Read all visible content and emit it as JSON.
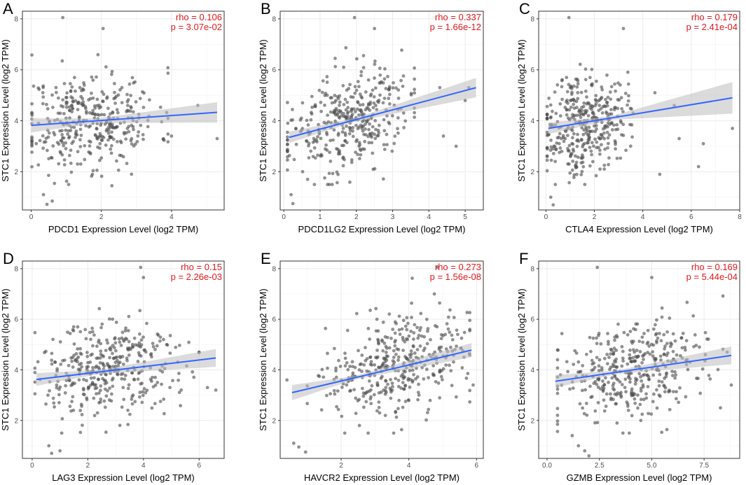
{
  "figure": {
    "background": "#ffffff",
    "grid_color": "#ebebeb",
    "point_color": "#4d4d4d",
    "line_color": "#3366ff",
    "band_color": "#bdbdbd",
    "stat_color": "#e31a1c"
  },
  "chart_data": [
    {
      "letter": "A",
      "type": "scatter",
      "xlabel": "PDCD1 Expression Level (log2 TPM)",
      "ylabel": "STC1 Expression Level (log2 TPM)",
      "rho": "rho = 0.106",
      "p": "p = 3.07e-02",
      "xlim": [
        -0.25,
        5.5
      ],
      "ylim": [
        0.5,
        8.3
      ],
      "xticks": [
        0,
        2,
        4
      ],
      "xtick_labels": [
        "0",
        "2",
        "4"
      ],
      "yticks": [
        2,
        4,
        6,
        8
      ],
      "ytick_labels": [
        "2",
        "4",
        "6",
        "8"
      ],
      "fit": {
        "x0": 0,
        "y0": 3.82,
        "x1": 5.3,
        "y1": 4.33,
        "band0": 0.28,
        "bandmid": 0.09,
        "band1": 0.4
      },
      "cloud": {
        "n": 380,
        "xmean": 1.7,
        "xsd": 0.95,
        "xmin": 0.02,
        "xmax": 3.9,
        "ymean": 4.0,
        "ysd": 0.95,
        "seed": 11
      },
      "extra_points": [
        [
          0.9,
          8.05
        ],
        [
          2.05,
          7.62
        ],
        [
          4.75,
          4.6
        ],
        [
          5.3,
          3.3
        ],
        [
          4.0,
          3.4
        ],
        [
          2.3,
          1.45
        ],
        [
          0.35,
          1.1
        ],
        [
          0.45,
          0.72
        ],
        [
          0.6,
          0.85
        ]
      ]
    },
    {
      "letter": "B",
      "type": "scatter",
      "xlabel": "PDCD1LG2 Expression Level (log2 TPM)",
      "ylabel": "STC1 Expression Level (log2 TPM)",
      "rho": "rho = 0.337",
      "p": "p = 1.66e-12",
      "xlim": [
        -0.1,
        5.5
      ],
      "ylim": [
        0.5,
        8.3
      ],
      "xticks": [
        0,
        1,
        2,
        3,
        4,
        5
      ],
      "xtick_labels": [
        "0",
        "1",
        "2",
        "3",
        "4",
        "5"
      ],
      "yticks": [
        2,
        4,
        6,
        8
      ],
      "ytick_labels": [
        "2",
        "4",
        "6",
        "8"
      ],
      "fit": {
        "x0": 0.15,
        "y0": 3.35,
        "x1": 5.3,
        "y1": 5.3,
        "band0": 0.22,
        "bandmid": 0.07,
        "band1": 0.38
      },
      "cloud": {
        "n": 380,
        "xmean": 1.75,
        "xsd": 0.85,
        "xmin": 0.1,
        "xmax": 3.6,
        "ymean": 4.0,
        "ysd": 0.95,
        "seed": 23
      },
      "extra_points": [
        [
          1.95,
          8.05
        ],
        [
          2.5,
          7.62
        ],
        [
          4.3,
          5.3
        ],
        [
          5.1,
          5.3
        ],
        [
          5.0,
          4.8
        ],
        [
          4.75,
          3.0
        ],
        [
          4.4,
          3.4
        ],
        [
          0.2,
          1.1
        ],
        [
          0.25,
          0.75
        ]
      ]
    },
    {
      "letter": "C",
      "type": "scatter",
      "xlabel": "CTLA4 Expression Level (log2 TPM)",
      "ylabel": "STC1 Expression Level (log2 TPM)",
      "rho": "rho = 0.179",
      "p": "p = 2.41e-04",
      "xlim": [
        -0.3,
        8.0
      ],
      "ylim": [
        0.5,
        8.3
      ],
      "xticks": [
        0,
        2,
        4,
        6,
        8
      ],
      "xtick_labels": [
        "0",
        "2",
        "4",
        "6",
        "8"
      ],
      "yticks": [
        2,
        4,
        6,
        8
      ],
      "ytick_labels": [
        "2",
        "4",
        "6",
        "8"
      ],
      "fit": {
        "x0": 0.1,
        "y0": 3.7,
        "x1": 7.7,
        "y1": 4.9,
        "band0": 0.22,
        "bandmid": 0.08,
        "band1": 0.62
      },
      "cloud": {
        "n": 380,
        "xmean": 1.6,
        "xsd": 0.85,
        "xmin": 0.05,
        "xmax": 3.6,
        "ymean": 4.0,
        "ysd": 0.95,
        "seed": 37
      },
      "extra_points": [
        [
          0.95,
          8.05
        ],
        [
          3.2,
          7.62
        ],
        [
          4.5,
          5.1
        ],
        [
          5.3,
          4.6
        ],
        [
          5.5,
          3.3
        ],
        [
          6.5,
          3.1
        ],
        [
          7.7,
          3.7
        ],
        [
          4.7,
          1.9
        ],
        [
          6.3,
          2.2
        ],
        [
          0.2,
          1.0
        ],
        [
          0.3,
          0.7
        ]
      ]
    },
    {
      "letter": "D",
      "type": "scatter",
      "xlabel": "LAG3 Expression Level (log2 TPM)",
      "ylabel": "STC1 Expression Level (log2 TPM)",
      "rho": "rho = 0.15",
      "p": "p = 2.26e-03",
      "xlim": [
        -0.35,
        6.9
      ],
      "ylim": [
        0.5,
        8.3
      ],
      "xticks": [
        0,
        2,
        4,
        6
      ],
      "xtick_labels": [
        "0",
        "2",
        "4",
        "6"
      ],
      "yticks": [
        2,
        4,
        6,
        8
      ],
      "ytick_labels": [
        "2",
        "4",
        "6",
        "8"
      ],
      "fit": {
        "x0": 0.15,
        "y0": 3.62,
        "x1": 6.6,
        "y1": 4.47,
        "band0": 0.25,
        "bandmid": 0.08,
        "band1": 0.35
      },
      "cloud": {
        "n": 380,
        "xmean": 2.8,
        "xsd": 1.25,
        "xmin": 0.1,
        "xmax": 6.0,
        "ymean": 4.0,
        "ysd": 0.95,
        "seed": 51
      },
      "extra_points": [
        [
          3.9,
          8.05
        ],
        [
          4.0,
          7.65
        ],
        [
          6.0,
          4.7
        ],
        [
          6.3,
          3.3
        ],
        [
          6.6,
          3.2
        ],
        [
          0.6,
          1.0
        ],
        [
          0.7,
          0.7
        ],
        [
          1.0,
          0.8
        ]
      ]
    },
    {
      "letter": "E",
      "type": "scatter",
      "xlabel": "HAVCR2 Expression Level (log2 TPM)",
      "ylabel": "STC1 Expression Level (log2 TPM)",
      "rho": "rho = 0.273",
      "p": "p = 1.56e-08",
      "xlim": [
        0.2,
        6.2
      ],
      "ylim": [
        0.5,
        8.3
      ],
      "xticks": [
        2,
        4,
        6
      ],
      "xtick_labels": [
        "2",
        "4",
        "6"
      ],
      "yticks": [
        2,
        4,
        6,
        8
      ],
      "ytick_labels": [
        "2",
        "4",
        "6",
        "8"
      ],
      "fit": {
        "x0": 0.55,
        "y0": 3.1,
        "x1": 5.85,
        "y1": 4.78,
        "band0": 0.3,
        "bandmid": 0.07,
        "band1": 0.28
      },
      "cloud": {
        "n": 390,
        "xmean": 3.6,
        "xsd": 1.0,
        "xmin": 1.0,
        "xmax": 5.8,
        "ymean": 4.0,
        "ysd": 0.95,
        "seed": 67
      },
      "extra_points": [
        [
          4.85,
          8.05
        ],
        [
          4.1,
          7.62
        ],
        [
          5.8,
          5.6
        ],
        [
          5.9,
          3.4
        ],
        [
          0.6,
          1.1
        ],
        [
          0.75,
          0.95
        ],
        [
          0.95,
          0.75
        ],
        [
          0.4,
          3.6
        ]
      ]
    },
    {
      "letter": "F",
      "type": "scatter",
      "xlabel": "GZMB Expression Level (log2 TPM)",
      "ylabel": "STC1 Expression Level (log2 TPM)",
      "rho": "rho = 0.169",
      "p": "p = 5.44e-04",
      "xlim": [
        -0.4,
        9.2
      ],
      "ylim": [
        0.5,
        8.3
      ],
      "xticks": [
        0,
        2.5,
        5,
        7.5
      ],
      "xtick_labels": [
        "0.0",
        "2.5",
        "5.0",
        "7.5"
      ],
      "yticks": [
        2,
        4,
        6,
        8
      ],
      "ytick_labels": [
        "2",
        "4",
        "6",
        "8"
      ],
      "fit": {
        "x0": 0.4,
        "y0": 3.55,
        "x1": 8.8,
        "y1": 4.57,
        "band0": 0.25,
        "bandmid": 0.07,
        "band1": 0.35
      },
      "cloud": {
        "n": 390,
        "xmean": 4.0,
        "xsd": 1.8,
        "xmin": 0.5,
        "xmax": 8.4,
        "ymean": 4.0,
        "ysd": 0.95,
        "seed": 83
      },
      "extra_points": [
        [
          2.4,
          8.05
        ],
        [
          5.0,
          7.65
        ],
        [
          8.6,
          4.7
        ],
        [
          8.8,
          3.4
        ],
        [
          1.5,
          1.0
        ],
        [
          1.8,
          0.8
        ],
        [
          2.0,
          0.6
        ],
        [
          1.2,
          1.4
        ]
      ]
    }
  ]
}
